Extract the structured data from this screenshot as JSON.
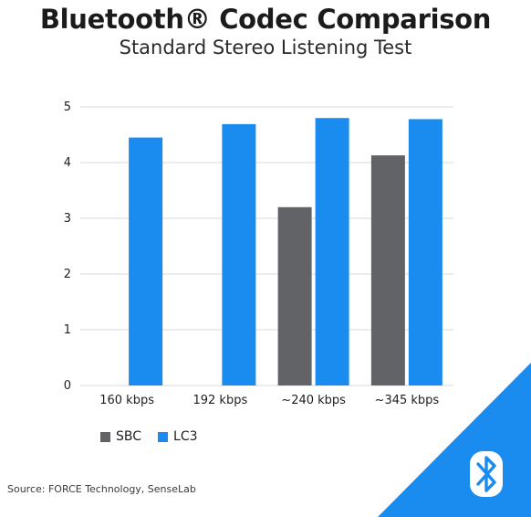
{
  "chart_data": {
    "type": "bar",
    "title": "Bluetooth® Codec Comparison",
    "subtitle": "Standard Stereo Listening Test",
    "categories": [
      "160 kbps",
      "192 kbps",
      "~240 kbps",
      "~345 kbps"
    ],
    "series": [
      {
        "name": "SBC",
        "color": "#626366",
        "values": [
          null,
          null,
          3.2,
          4.13
        ]
      },
      {
        "name": "LC3",
        "color": "#1a8cf0",
        "values": [
          4.45,
          4.69,
          4.8,
          4.78
        ]
      }
    ],
    "ylim": [
      0,
      5
    ],
    "yticks": [
      0,
      1,
      2,
      3,
      4,
      5
    ],
    "xlabel": "",
    "ylabel": "",
    "grid": true,
    "legend": "bottom-left"
  },
  "source": "Source: FORCE Technology, SenseLab",
  "brand": {
    "accent": "#1a8cf0",
    "logo_icon": "bluetooth-icon"
  }
}
